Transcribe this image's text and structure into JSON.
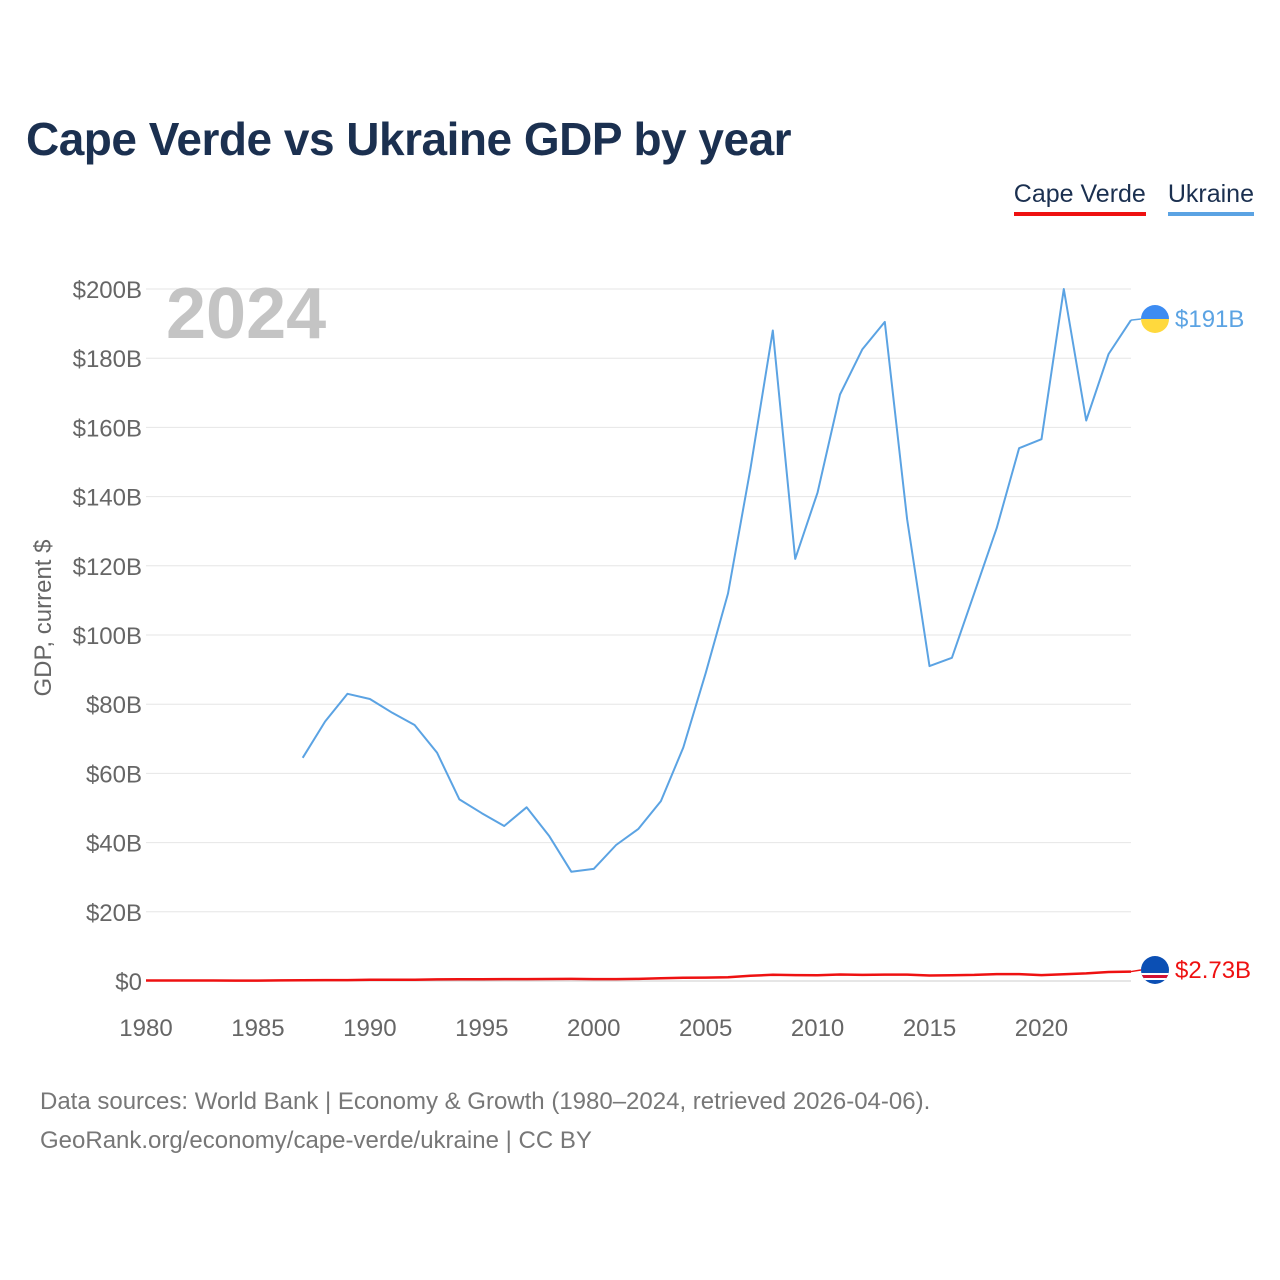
{
  "title": "Cape Verde vs Ukraine GDP by year",
  "legend": [
    {
      "label": "Cape Verde",
      "color": "#ee1111"
    },
    {
      "label": "Ukraine",
      "color": "#5ba3e3"
    }
  ],
  "year_label": "2024",
  "footer": {
    "line1": "Data sources: World Bank | Economy & Growth (1980–2024, retrieved 2026-04-06).",
    "line2": "GeoRank.org/economy/cape-verde/ukraine | CC BY"
  },
  "chart_data": {
    "type": "line",
    "title": "Cape Verde vs Ukraine GDP by year",
    "xlabel": "",
    "ylabel": "GDP, current $",
    "xlim": [
      1980,
      2024
    ],
    "ylim": [
      0,
      200
    ],
    "unit": "billions USD",
    "x_ticks": [
      1980,
      1985,
      1990,
      1995,
      2000,
      2005,
      2010,
      2015,
      2020
    ],
    "y_ticks": [
      {
        "value": 0,
        "label": "$0"
      },
      {
        "value": 20,
        "label": "$20B"
      },
      {
        "value": 40,
        "label": "$40B"
      },
      {
        "value": 60,
        "label": "$60B"
      },
      {
        "value": 80,
        "label": "$80B"
      },
      {
        "value": 100,
        "label": "$100B"
      },
      {
        "value": 120,
        "label": "$120B"
      },
      {
        "value": 140,
        "label": "$140B"
      },
      {
        "value": 160,
        "label": "$160B"
      },
      {
        "value": 180,
        "label": "$180B"
      },
      {
        "value": 200,
        "label": "$200B"
      }
    ],
    "grid": true,
    "series": [
      {
        "name": "Ukraine",
        "color": "#5ba3e3",
        "end_label": "$191B",
        "x": [
          1987,
          1988,
          1989,
          1990,
          1991,
          1992,
          1993,
          1994,
          1995,
          1996,
          1997,
          1998,
          1999,
          2000,
          2001,
          2002,
          2003,
          2004,
          2005,
          2006,
          2007,
          2008,
          2009,
          2010,
          2011,
          2012,
          2013,
          2014,
          2015,
          2016,
          2017,
          2018,
          2019,
          2020,
          2021,
          2022,
          2023,
          2024
        ],
        "values": [
          64.5,
          75,
          83,
          81.5,
          77.5,
          74,
          66,
          52.5,
          48.5,
          44.8,
          50.2,
          42,
          31.6,
          32.4,
          39.3,
          44,
          52,
          67.5,
          89,
          112,
          148,
          188,
          122,
          141.2,
          169.5,
          182.6,
          190.5,
          133.5,
          91,
          93.4,
          112.1,
          130.9,
          154,
          156.6,
          200,
          162,
          181.2,
          191
        ]
      },
      {
        "name": "Cape Verde",
        "color": "#ee1111",
        "end_label": "$2.73B",
        "x": [
          1980,
          1981,
          1982,
          1983,
          1984,
          1985,
          1986,
          1987,
          1988,
          1989,
          1990,
          1991,
          1992,
          1993,
          1994,
          1995,
          1996,
          1997,
          1998,
          1999,
          2000,
          2001,
          2002,
          2003,
          2004,
          2005,
          2006,
          2007,
          2008,
          2009,
          2010,
          2011,
          2012,
          2013,
          2014,
          2015,
          2016,
          2017,
          2018,
          2019,
          2020,
          2021,
          2022,
          2023,
          2024
        ],
        "values": [
          0.14,
          0.14,
          0.14,
          0.14,
          0.13,
          0.13,
          0.18,
          0.22,
          0.26,
          0.27,
          0.34,
          0.35,
          0.39,
          0.47,
          0.51,
          0.51,
          0.54,
          0.54,
          0.57,
          0.61,
          0.54,
          0.56,
          0.62,
          0.82,
          0.92,
          0.97,
          1.11,
          1.51,
          1.79,
          1.71,
          1.66,
          1.87,
          1.75,
          1.85,
          1.86,
          1.6,
          1.67,
          1.77,
          1.99,
          2.0,
          1.71,
          1.94,
          2.21,
          2.59,
          2.73
        ]
      }
    ]
  }
}
